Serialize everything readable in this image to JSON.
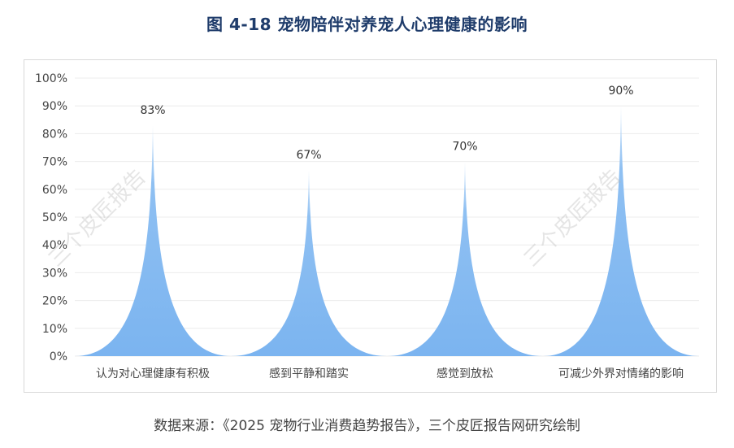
{
  "header": {
    "title": "图 4-18 宠物陪伴对养宠人心理健康的影响"
  },
  "watermarks": [
    "三个皮匠报告",
    "三个皮匠报告"
  ],
  "footer": {
    "source": "数据来源：《2025 宠物行业消费趋势报告》，三个皮匠报告网研究绘制"
  },
  "chart_data": {
    "type": "bar",
    "categories": [
      "认为对心理健康有积极",
      "感到平静和踏实",
      "感觉到放松",
      "可减少外界对情绪的影响"
    ],
    "values": [
      83,
      67,
      70,
      90
    ],
    "value_labels": [
      "83%",
      "67%",
      "70%",
      "90%"
    ],
    "y_ticks": [
      "0%",
      "10%",
      "20%",
      "30%",
      "40%",
      "50%",
      "60%",
      "70%",
      "80%",
      "90%",
      "100%"
    ],
    "ylim": [
      0,
      100
    ],
    "grid": true,
    "legend": "none",
    "title": "",
    "xlabel": "",
    "ylabel": "",
    "colors": {
      "bar_fill": "#7bb4f0",
      "bar_fill_light": "#d8e9fb",
      "grid": "#ececec",
      "axis_text": "#444444",
      "label_text": "#333333",
      "title": "#1f3c6b"
    }
  }
}
